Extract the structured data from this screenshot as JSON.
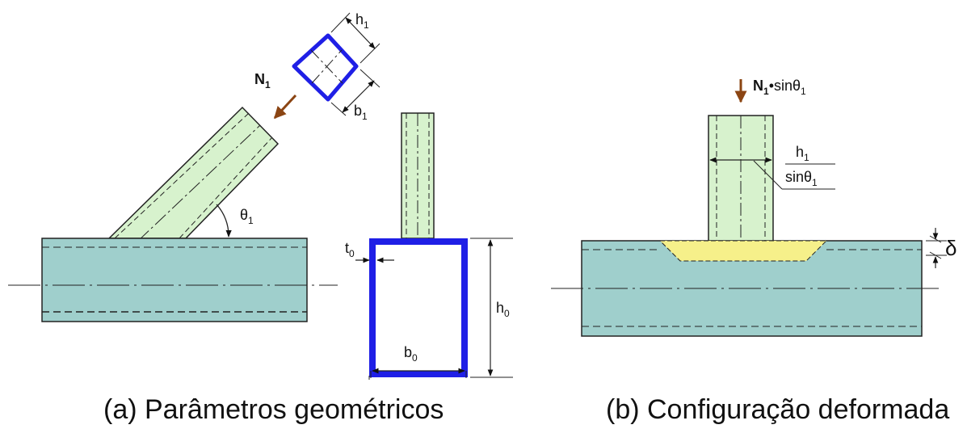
{
  "panel_a": {
    "labels": {
      "h1": "h",
      "h1_sub": "1",
      "b1": "b",
      "b1_sub": "1",
      "N1": "N",
      "N1_sub": "1",
      "theta1": "θ",
      "theta1_sub": "1",
      "t0": "t",
      "t0_sub": "0",
      "h0": "h",
      "h0_sub": "0",
      "b0": "b",
      "b0_sub": "0"
    },
    "caption": "(a) Parâmetros geométricos"
  },
  "panel_b": {
    "labels": {
      "load": "N",
      "load_sub": "1",
      "load_rest": "•sinθ",
      "load_rest_sub": "1",
      "frac_num": "h",
      "frac_num_sub": "1",
      "frac_den": "sinθ",
      "frac_den_sub": "1",
      "delta": "δ"
    },
    "caption": "(b) Configuração deformada"
  },
  "colors": {
    "chord_fill": "#9fcfcc",
    "brace_fill": "#d7f2cd",
    "section_stroke": "#1f1fe6",
    "deform_fill": "#f6f08a",
    "arrow": "#8b4513"
  }
}
